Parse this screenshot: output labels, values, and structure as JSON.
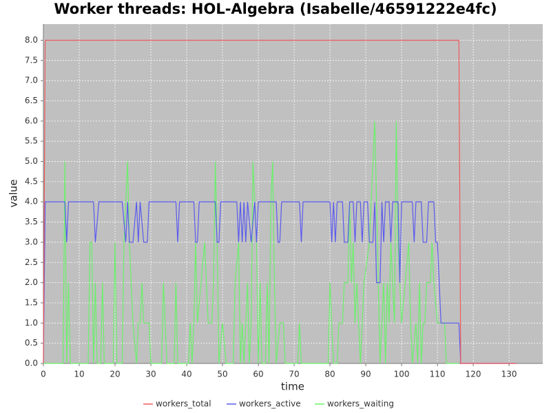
{
  "chart_data": {
    "type": "line",
    "title": "Worker threads: HOL-Algebra (Isabelle/46591222e4fc)",
    "xlabel": "time",
    "ylabel": "value",
    "xlim": [
      0,
      139.4
    ],
    "ylim": [
      0,
      8.4
    ],
    "xticks": [
      0,
      10,
      20,
      30,
      40,
      50,
      60,
      70,
      80,
      90,
      100,
      110,
      120,
      130
    ],
    "yticks": [
      {
        "value": 0,
        "label": "0.0"
      },
      0.5,
      {
        "value": 1,
        "label": "1.0"
      },
      1.5,
      {
        "value": 2,
        "label": "2.0"
      },
      2.5,
      {
        "value": 3,
        "label": "3.0"
      },
      3.5,
      {
        "value": 4,
        "label": "4.0"
      },
      4.5,
      {
        "value": 5,
        "label": "5.0"
      },
      5.5,
      {
        "value": 6,
        "label": "6.0"
      },
      6.5,
      {
        "value": 7,
        "label": "7.0"
      },
      7.5,
      {
        "value": 8,
        "label": "8.0"
      }
    ],
    "grid": true,
    "legend": "bottom",
    "series": [
      {
        "name": "workers_total",
        "color": "#f05a5a",
        "x": [
          0,
          0.5,
          116,
          116.5,
          132
        ],
        "values": [
          0,
          8,
          8,
          0,
          0
        ]
      },
      {
        "name": "workers_active",
        "color": "#5a5af0",
        "x": [
          0,
          0.5,
          6,
          6.5,
          7,
          14,
          14.5,
          15.5,
          22,
          23,
          23.5,
          24,
          25,
          26,
          26.5,
          27,
          28,
          29,
          29.5,
          37,
          37.5,
          38,
          42,
          42.5,
          43,
          43.5,
          48,
          48.5,
          49,
          49.5,
          54,
          54.5,
          55,
          55.5,
          56,
          56.5,
          57,
          58,
          59,
          59.5,
          60,
          65,
          65.5,
          66,
          66.5,
          71.5,
          72,
          72.5,
          80,
          80.5,
          81,
          81.5,
          82,
          83.5,
          84,
          85,
          85.5,
          86.5,
          87,
          87.5,
          88.5,
          89,
          89.5,
          90.5,
          91,
          92,
          92.5,
          93,
          94,
          94.5,
          95,
          95.5,
          96.5,
          97,
          97.5,
          99,
          99.5,
          100,
          103,
          103.5,
          104,
          105.5,
          106,
          107,
          107.5,
          109,
          109.5,
          110,
          111,
          116,
          116.5,
          132
        ],
        "values": [
          0,
          4,
          4,
          3,
          4,
          4,
          3,
          4,
          4,
          3,
          4,
          3,
          3,
          4,
          3,
          4,
          3,
          3,
          4,
          4,
          3,
          4,
          4,
          3,
          3,
          4,
          4,
          3,
          3,
          4,
          4,
          3,
          4,
          3,
          4,
          3,
          4,
          3,
          4,
          3,
          4,
          4,
          3,
          3,
          4,
          4,
          3,
          4,
          4,
          3,
          4,
          3,
          4,
          4,
          3,
          3,
          4,
          4,
          3,
          4,
          4,
          3,
          4,
          4,
          3,
          3,
          4,
          2,
          2,
          4,
          3,
          4,
          4,
          3,
          4,
          4,
          2,
          4,
          4,
          3,
          4,
          4,
          3,
          3,
          4,
          4,
          3,
          3,
          1,
          1,
          0,
          0
        ]
      },
      {
        "name": "workers_waiting",
        "color": "#6af06a",
        "x": [
          0,
          5.5,
          6,
          6.5,
          7,
          7.5,
          12.5,
          13,
          13.5,
          14,
          14.5,
          15,
          16,
          16.5,
          17,
          19.5,
          20,
          20.5,
          22,
          22.5,
          23,
          23.5,
          24,
          25,
          26,
          26.5,
          27,
          27.5,
          28,
          29.5,
          30,
          33,
          33.5,
          34.5,
          36.5,
          37,
          37.5,
          40.5,
          41,
          41.5,
          42,
          42.5,
          43,
          44,
          45,
          46,
          47,
          47.5,
          48,
          48.5,
          49,
          50,
          51,
          53,
          53.5,
          54.5,
          55,
          55.5,
          56,
          57,
          57.5,
          58,
          58.5,
          59.5,
          60,
          60.5,
          61,
          62,
          62.5,
          63,
          63.5,
          64,
          64.5,
          65,
          66,
          67,
          67.5,
          71,
          71.5,
          72,
          79.5,
          80,
          80.5,
          81,
          82,
          82.5,
          83.5,
          84,
          85,
          85.5,
          86,
          86.5,
          87,
          87.5,
          88.5,
          89,
          89.5,
          91,
          92,
          92.5,
          93,
          93.5,
          94,
          95,
          95.5,
          96,
          96.5,
          97,
          98,
          98.5,
          99,
          100,
          101,
          102,
          102.5,
          103,
          104,
          104.5,
          105,
          105.5,
          106,
          106.5,
          107,
          108,
          108.5,
          109,
          110,
          112,
          112.5,
          116
        ],
        "values": [
          0,
          0,
          5,
          0,
          2,
          0,
          0,
          3,
          3,
          0,
          2,
          0,
          0,
          2,
          0,
          0,
          3,
          0,
          0,
          3,
          4,
          5,
          3,
          1,
          0,
          1,
          1,
          2,
          1,
          1,
          0,
          0,
          2,
          0,
          0,
          2,
          0,
          0,
          1,
          0,
          1,
          3,
          1,
          2,
          3,
          1,
          1,
          2,
          5,
          3,
          0,
          1,
          0,
          0,
          2,
          3,
          0,
          1,
          0,
          2,
          0,
          1,
          5,
          3,
          0,
          2,
          0,
          0,
          2,
          0,
          4,
          5,
          2,
          0,
          1,
          1,
          0,
          0,
          1,
          0,
          0,
          2,
          1,
          0,
          0,
          1,
          1,
          2,
          2,
          4,
          2,
          3,
          1,
          2,
          0,
          1,
          2,
          3,
          5,
          6,
          4,
          2,
          0,
          2,
          0,
          2,
          1,
          3,
          1,
          6,
          3,
          1,
          2,
          3,
          1,
          0,
          1,
          0,
          2,
          0,
          1,
          1,
          2,
          2,
          3,
          2,
          1,
          1,
          0,
          0
        ]
      }
    ]
  }
}
